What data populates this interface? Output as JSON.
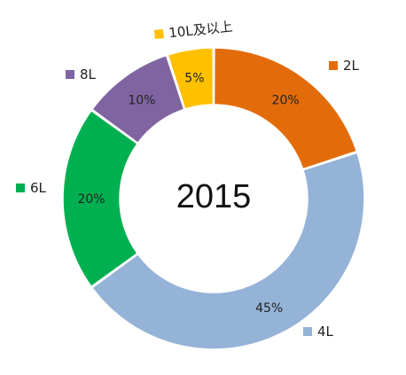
{
  "chart_data": {
    "type": "pie",
    "center_label": "2015",
    "slices": [
      {
        "name": "2L",
        "value": 20,
        "label": "20%",
        "color": "#E36C0A"
      },
      {
        "name": "4L",
        "value": 45,
        "label": "45%",
        "color": "#95B3D7"
      },
      {
        "name": "6L",
        "value": 20,
        "label": "20%",
        "color": "#00B050"
      },
      {
        "name": "8L",
        "value": 10,
        "label": "10%",
        "color": "#8064A2"
      },
      {
        "name": "10L及以上",
        "value": 5,
        "label": "5%",
        "color": "#FFC000"
      }
    ]
  }
}
